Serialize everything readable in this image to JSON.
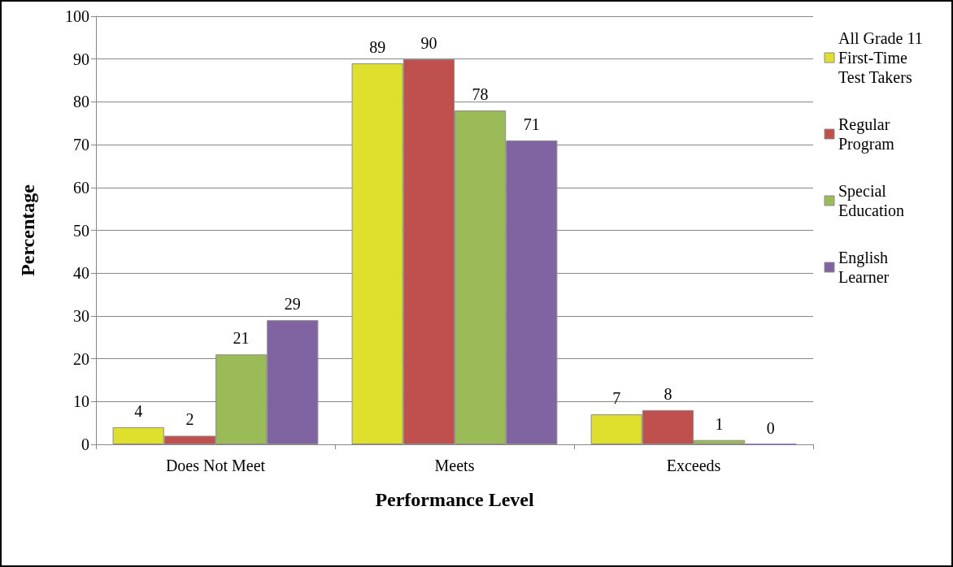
{
  "chart_data": {
    "type": "bar",
    "xlabel": "Performance Level",
    "ylabel": "Percentage",
    "categories": [
      "Does Not Meet",
      "Meets",
      "Exceeds"
    ],
    "series": [
      {
        "name": "All Grade 11 First-Time Test Takers",
        "color": "#dfdf2d",
        "values": [
          4,
          89,
          7
        ]
      },
      {
        "name": "Regular Program",
        "color": "#c0504d",
        "values": [
          2,
          90,
          8
        ]
      },
      {
        "name": "Special Education",
        "color": "#9bbb59",
        "values": [
          21,
          78,
          1
        ]
      },
      {
        "name": "English Learner",
        "color": "#8064a2",
        "values": [
          29,
          71,
          0
        ]
      }
    ],
    "ylim": [
      0,
      100
    ],
    "yticks": [
      0,
      10,
      20,
      30,
      40,
      50,
      60,
      70,
      80,
      90,
      100
    ],
    "grid": "y",
    "legend": "right",
    "data_labels": true
  }
}
